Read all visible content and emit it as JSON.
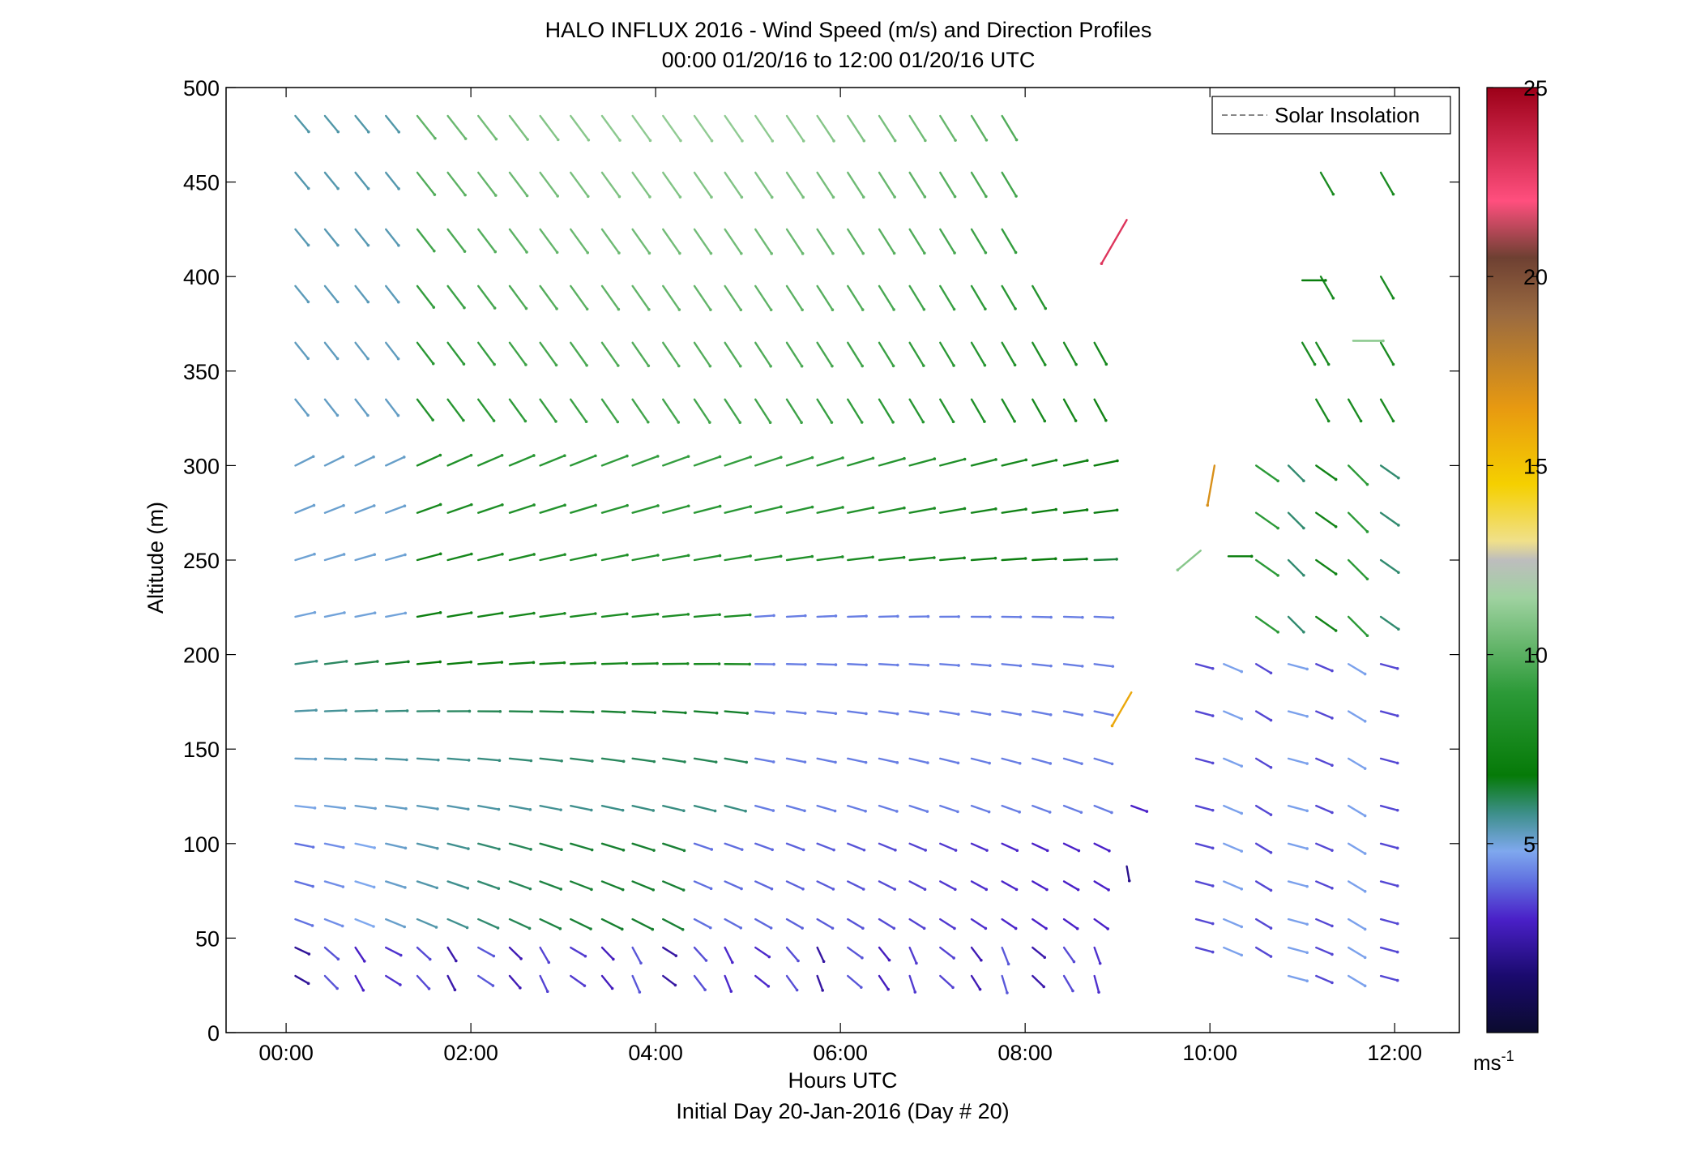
{
  "chart_data": {
    "type": "quiver",
    "title": "HALO INFLUX 2016 - Wind Speed (m/s) and Direction Profiles",
    "subtitle": "00:00 01/20/16 to 12:00 01/20/16  UTC",
    "xlabel": "Hours UTC",
    "xlabel_sub": "Initial Day 20-Jan-2016 (Day # 20)",
    "ylabel": "Altitude (m)",
    "xlim": [
      -0.65,
      12.7
    ],
    "ylim": [
      0,
      500
    ],
    "x_ticks": [
      {
        "value": 0,
        "label": "00:00"
      },
      {
        "value": 2,
        "label": "02:00"
      },
      {
        "value": 4,
        "label": "04:00"
      },
      {
        "value": 6,
        "label": "06:00"
      },
      {
        "value": 8,
        "label": "08:00"
      },
      {
        "value": 10,
        "label": "10:00"
      },
      {
        "value": 12,
        "label": "12:00"
      }
    ],
    "y_ticks": [
      {
        "value": 0,
        "label": "0"
      },
      {
        "value": 50,
        "label": "50"
      },
      {
        "value": 100,
        "label": "100"
      },
      {
        "value": 150,
        "label": "150"
      },
      {
        "value": 200,
        "label": "200"
      },
      {
        "value": 250,
        "label": "250"
      },
      {
        "value": 300,
        "label": "300"
      },
      {
        "value": 350,
        "label": "350"
      },
      {
        "value": 400,
        "label": "400"
      },
      {
        "value": 450,
        "label": "450"
      },
      {
        "value": 500,
        "label": "500"
      }
    ],
    "legend": {
      "label": "Solar Insolation",
      "placement": "top-right",
      "line_color": "#888888",
      "line_style": "dashed"
    },
    "colorbar": {
      "range": [
        0,
        25
      ],
      "ticks": [
        {
          "value": 5,
          "label": "5"
        },
        {
          "value": 10,
          "label": "10"
        },
        {
          "value": 15,
          "label": "15"
        },
        {
          "value": 20,
          "label": "20"
        },
        {
          "value": 25,
          "label": "25"
        }
      ],
      "unit_label": "ms",
      "unit_exponent": "-1",
      "stops": [
        {
          "v": 0,
          "c": "#0b0b2e"
        },
        {
          "v": 1.5,
          "c": "#1a0a6e"
        },
        {
          "v": 3,
          "c": "#4a20c8"
        },
        {
          "v": 4,
          "c": "#6070e0"
        },
        {
          "v": 4.8,
          "c": "#7fa8ee"
        },
        {
          "v": 5.8,
          "c": "#3d8f8a"
        },
        {
          "v": 6.8,
          "c": "#067a08"
        },
        {
          "v": 9,
          "c": "#2c9a38"
        },
        {
          "v": 11.5,
          "c": "#9fd2a0"
        },
        {
          "v": 12.5,
          "c": "#bdbdbd"
        },
        {
          "v": 13,
          "c": "#f0e08a"
        },
        {
          "v": 14.5,
          "c": "#f5d000"
        },
        {
          "v": 16.5,
          "c": "#e89a10"
        },
        {
          "v": 19,
          "c": "#9a6a40"
        },
        {
          "v": 20.5,
          "c": "#6e4032"
        },
        {
          "v": 22,
          "c": "#ff4f7e"
        },
        {
          "v": 25,
          "c": "#9c0018"
        }
      ]
    },
    "vector_note": "columns of wind barbs at ~20 min spacing; each vector defined by time, altitude, speed and heading",
    "columns": {
      "times": [
        0.1,
        0.42,
        0.75,
        1.08,
        1.42,
        1.75,
        2.08,
        2.42,
        2.75,
        3.08,
        3.42,
        3.75,
        4.08,
        4.42,
        4.75,
        5.08,
        5.42,
        5.75,
        6.08,
        6.42,
        6.75,
        7.08,
        7.42,
        7.75,
        8.08,
        8.42,
        8.75
      ],
      "levels": [
        30,
        45,
        60,
        80,
        100,
        120,
        145,
        170,
        195,
        220,
        250,
        275,
        300,
        335,
        365,
        395,
        425,
        455,
        485
      ]
    },
    "late_vectors": [
      {
        "t": 9.1,
        "z": 430,
        "spd": 23,
        "dir": 210
      },
      {
        "t": 9.15,
        "z": 180,
        "spd": 16,
        "dir": 210
      },
      {
        "t": 9.15,
        "z": 120,
        "spd": 3,
        "dir": 110
      },
      {
        "t": 9.1,
        "z": 88,
        "spd": 2,
        "dir": 170
      },
      {
        "t": 10.05,
        "z": 300,
        "spd": 17,
        "dir": 190
      },
      {
        "t": 9.9,
        "z": 255,
        "spd": 11,
        "dir": 230
      },
      {
        "t": 10.2,
        "z": 252,
        "spd": 7,
        "dir": 90
      },
      {
        "t": 11.0,
        "z": 398,
        "spd": 7,
        "dir": 90
      },
      {
        "t": 11.55,
        "z": 366,
        "spd": 11,
        "dir": 90
      }
    ]
  }
}
